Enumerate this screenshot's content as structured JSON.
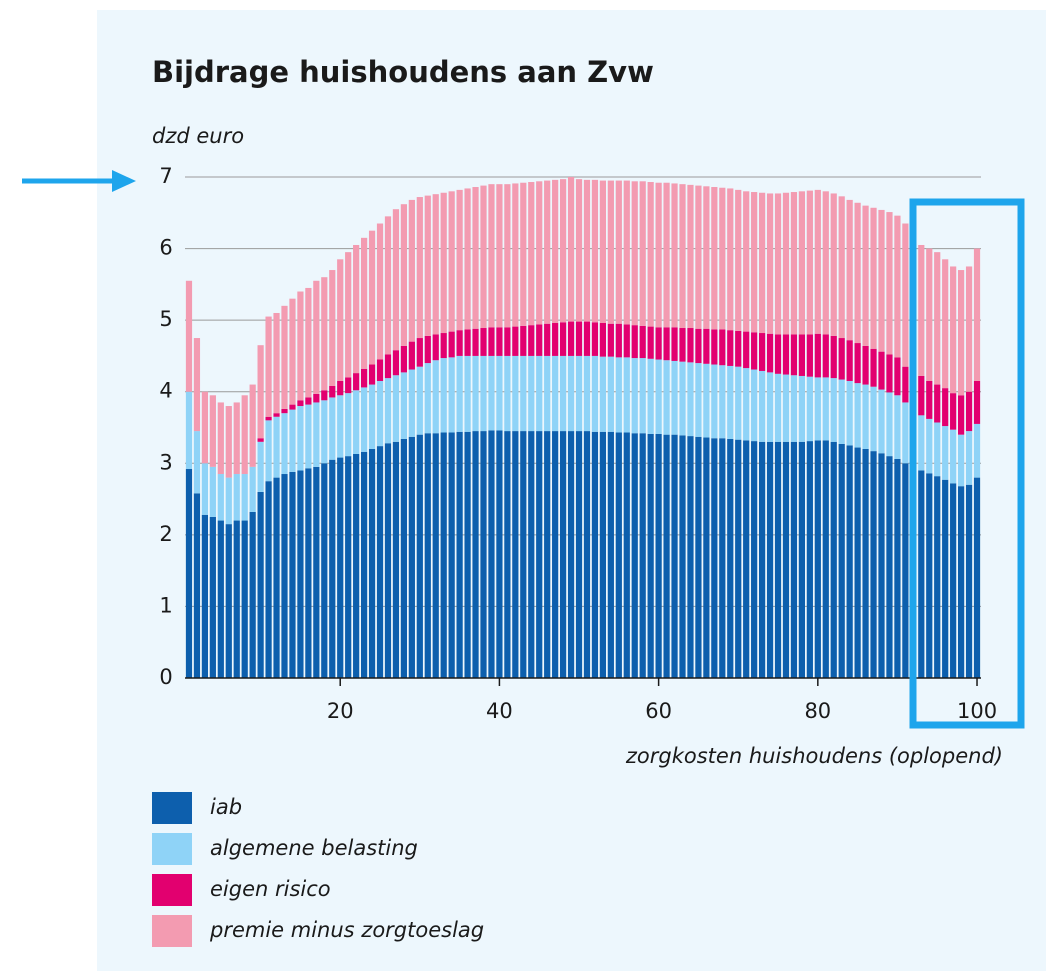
{
  "chart_data": {
    "type": "stacked_bar",
    "title": "Bijdrage huishoudens aan Zvw",
    "y_label": "dzd euro",
    "x_label": "zorgkosten huishoudens (oplopend)",
    "x": [
      1,
      2,
      3,
      4,
      5,
      6,
      7,
      8,
      9,
      10,
      11,
      12,
      13,
      14,
      15,
      16,
      17,
      18,
      19,
      20,
      21,
      22,
      23,
      24,
      25,
      26,
      27,
      28,
      29,
      30,
      31,
      32,
      33,
      34,
      35,
      36,
      37,
      38,
      39,
      40,
      41,
      42,
      43,
      44,
      45,
      46,
      47,
      48,
      49,
      50,
      51,
      52,
      53,
      54,
      55,
      56,
      57,
      58,
      59,
      60,
      61,
      62,
      63,
      64,
      65,
      66,
      67,
      68,
      69,
      70,
      71,
      72,
      73,
      74,
      75,
      76,
      77,
      78,
      79,
      80,
      81,
      82,
      83,
      84,
      85,
      86,
      87,
      88,
      89,
      90,
      91,
      92,
      93,
      94,
      95,
      96,
      97,
      98,
      99,
      100
    ],
    "xlim": [
      0.5,
      100.5
    ],
    "xticks": [
      20,
      40,
      60,
      80,
      100
    ],
    "ylim": [
      0,
      7
    ],
    "yticks": [
      0,
      1,
      2,
      3,
      4,
      5,
      6,
      7
    ],
    "grid": true,
    "legend": "bottom-left",
    "series": [
      {
        "name": "iab",
        "color": "#0d5fad",
        "values": [
          2.92,
          2.58,
          2.28,
          2.25,
          2.2,
          2.15,
          2.2,
          2.2,
          2.32,
          2.6,
          2.75,
          2.8,
          2.85,
          2.88,
          2.9,
          2.93,
          2.95,
          3.0,
          3.05,
          3.08,
          3.1,
          3.13,
          3.16,
          3.2,
          3.24,
          3.28,
          3.3,
          3.34,
          3.37,
          3.4,
          3.42,
          3.42,
          3.43,
          3.43,
          3.44,
          3.44,
          3.45,
          3.45,
          3.46,
          3.46,
          3.45,
          3.45,
          3.45,
          3.45,
          3.45,
          3.45,
          3.45,
          3.45,
          3.45,
          3.45,
          3.45,
          3.44,
          3.44,
          3.44,
          3.43,
          3.43,
          3.42,
          3.42,
          3.41,
          3.41,
          3.4,
          3.4,
          3.39,
          3.38,
          3.37,
          3.36,
          3.35,
          3.35,
          3.34,
          3.33,
          3.32,
          3.31,
          3.3,
          3.3,
          3.3,
          3.3,
          3.3,
          3.3,
          3.31,
          3.32,
          3.32,
          3.3,
          3.27,
          3.25,
          3.22,
          3.2,
          3.17,
          3.14,
          3.1,
          3.06,
          3.0,
          2.95,
          2.9,
          2.86,
          2.82,
          2.77,
          2.72,
          2.68,
          2.7,
          2.8
        ]
      },
      {
        "name": "algemene belasting",
        "color": "#8fd3f7",
        "values": [
          1.08,
          0.87,
          0.72,
          0.7,
          0.65,
          0.65,
          0.65,
          0.65,
          0.63,
          0.7,
          0.85,
          0.85,
          0.85,
          0.87,
          0.9,
          0.89,
          0.9,
          0.88,
          0.87,
          0.87,
          0.88,
          0.89,
          0.9,
          0.9,
          0.91,
          0.91,
          0.93,
          0.93,
          0.94,
          0.95,
          0.98,
          1.02,
          1.04,
          1.05,
          1.06,
          1.06,
          1.05,
          1.05,
          1.04,
          1.04,
          1.05,
          1.05,
          1.05,
          1.05,
          1.05,
          1.05,
          1.05,
          1.05,
          1.05,
          1.05,
          1.05,
          1.06,
          1.05,
          1.05,
          1.05,
          1.05,
          1.05,
          1.05,
          1.05,
          1.04,
          1.04,
          1.03,
          1.03,
          1.03,
          1.03,
          1.03,
          1.03,
          1.02,
          1.02,
          1.02,
          1.01,
          1.0,
          0.99,
          0.97,
          0.95,
          0.94,
          0.93,
          0.92,
          0.9,
          0.88,
          0.88,
          0.89,
          0.9,
          0.9,
          0.9,
          0.9,
          0.9,
          0.89,
          0.89,
          0.89,
          0.85,
          0.77,
          0.77,
          0.76,
          0.75,
          0.75,
          0.75,
          0.72,
          0.75,
          0.75
        ]
      },
      {
        "name": "eigen risico",
        "color": "#e2006f",
        "values": [
          0,
          0,
          0,
          0,
          0,
          0,
          0,
          0,
          0,
          0.05,
          0.05,
          0.05,
          0.06,
          0.07,
          0.08,
          0.1,
          0.12,
          0.14,
          0.16,
          0.2,
          0.22,
          0.24,
          0.26,
          0.28,
          0.3,
          0.33,
          0.35,
          0.37,
          0.39,
          0.4,
          0.38,
          0.36,
          0.35,
          0.36,
          0.36,
          0.37,
          0.38,
          0.39,
          0.4,
          0.4,
          0.4,
          0.41,
          0.42,
          0.43,
          0.44,
          0.45,
          0.46,
          0.47,
          0.48,
          0.48,
          0.48,
          0.47,
          0.47,
          0.46,
          0.47,
          0.46,
          0.46,
          0.45,
          0.45,
          0.45,
          0.46,
          0.47,
          0.47,
          0.48,
          0.48,
          0.49,
          0.49,
          0.5,
          0.5,
          0.5,
          0.51,
          0.52,
          0.53,
          0.54,
          0.55,
          0.56,
          0.57,
          0.58,
          0.59,
          0.61,
          0.6,
          0.59,
          0.58,
          0.57,
          0.56,
          0.54,
          0.53,
          0.53,
          0.53,
          0.53,
          0.5,
          0.58,
          0.55,
          0.53,
          0.53,
          0.53,
          0.51,
          0.55,
          0.55,
          0.6
        ]
      },
      {
        "name": "premie minus zorgtoeslag",
        "color": "#f39bb1",
        "values": [
          1.55,
          1.3,
          1.0,
          1.0,
          1.0,
          1.0,
          1.0,
          1.1,
          1.15,
          1.3,
          1.4,
          1.4,
          1.44,
          1.48,
          1.52,
          1.53,
          1.58,
          1.58,
          1.62,
          1.7,
          1.75,
          1.79,
          1.83,
          1.87,
          1.9,
          1.93,
          1.97,
          1.98,
          1.98,
          1.97,
          1.96,
          1.96,
          1.96,
          1.96,
          1.96,
          1.97,
          1.98,
          1.99,
          2.0,
          2.0,
          2.0,
          2.0,
          2.0,
          2.0,
          2.0,
          2.0,
          2.0,
          2.0,
          2.02,
          1.99,
          1.98,
          1.99,
          1.99,
          2.0,
          2.0,
          2.01,
          2.01,
          2.02,
          2.02,
          2.02,
          2.02,
          2.01,
          2.01,
          2.0,
          2.0,
          1.99,
          1.99,
          1.98,
          1.98,
          1.97,
          1.96,
          1.96,
          1.96,
          1.96,
          1.97,
          1.98,
          1.99,
          2.0,
          2.01,
          2.01,
          2.0,
          1.99,
          1.98,
          1.96,
          1.96,
          1.96,
          1.97,
          1.98,
          1.99,
          1.98,
          2.0,
          1.85,
          1.83,
          1.85,
          1.85,
          1.8,
          1.77,
          1.75,
          1.75,
          1.85
        ]
      }
    ]
  }
}
